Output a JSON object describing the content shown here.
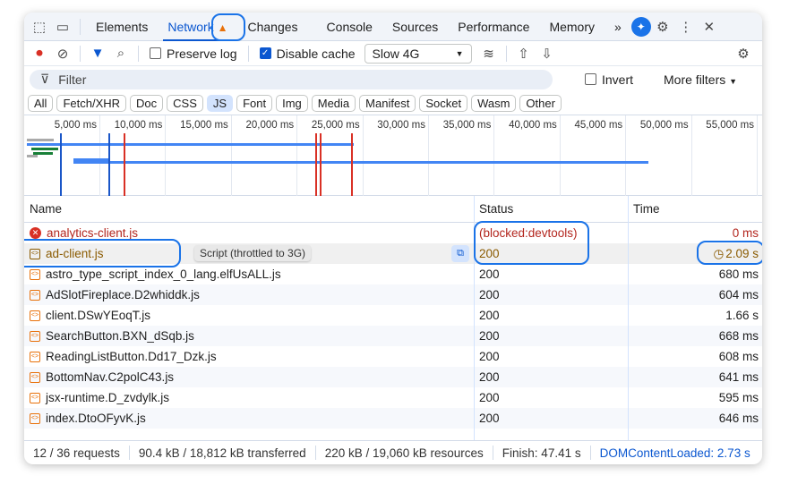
{
  "tabs": {
    "items": [
      "Elements",
      "Network",
      "Changes",
      "Console",
      "Sources",
      "Performance",
      "Memory"
    ],
    "active": "Network",
    "more": "»"
  },
  "toolbar": {
    "preserve_log": "Preserve log",
    "preserve_log_checked": false,
    "disable_cache": "Disable cache",
    "disable_cache_checked": true,
    "throttle": "Slow 4G"
  },
  "filter": {
    "placeholder": "Filter",
    "invert": "Invert",
    "more_filters": "More filters"
  },
  "types": [
    "All",
    "Fetch/XHR",
    "Doc",
    "CSS",
    "JS",
    "Font",
    "Img",
    "Media",
    "Manifest",
    "Socket",
    "Wasm",
    "Other"
  ],
  "active_type": "JS",
  "overview": {
    "ticks": [
      "5,000 ms",
      "10,000 ms",
      "15,000 ms",
      "20,000 ms",
      "25,000 ms",
      "30,000 ms",
      "35,000 ms",
      "40,000 ms",
      "45,000 ms",
      "50,000 ms",
      "55,000 ms"
    ]
  },
  "table": {
    "headers": {
      "name": "Name",
      "status": "Status",
      "time": "Time"
    },
    "rows": [
      {
        "name": "analytics-client.js",
        "status": "(blocked:devtools)",
        "time": "0 ms",
        "kind": "error"
      },
      {
        "name": "ad-client.js",
        "status": "200",
        "time": "2.09 s",
        "kind": "throttled"
      },
      {
        "name": "astro_type_script_index_0_lang.elfUsALL.js",
        "status": "200",
        "time": "680 ms",
        "kind": "normal"
      },
      {
        "name": "AdSlotFireplace.D2whiddk.js",
        "status": "200",
        "time": "604 ms",
        "kind": "normal"
      },
      {
        "name": "client.DSwYEoqT.js",
        "status": "200",
        "time": "1.66 s",
        "kind": "normal"
      },
      {
        "name": "SearchButton.BXN_dSqb.js",
        "status": "200",
        "time": "668 ms",
        "kind": "normal"
      },
      {
        "name": "ReadingListButton.Dd17_Dzk.js",
        "status": "200",
        "time": "608 ms",
        "kind": "normal"
      },
      {
        "name": "BottomNav.C2polC43.js",
        "status": "200",
        "time": "641 ms",
        "kind": "normal"
      },
      {
        "name": "jsx-runtime.D_zvdylk.js",
        "status": "200",
        "time": "595 ms",
        "kind": "normal"
      },
      {
        "name": "index.DtoOFyvK.js",
        "status": "200",
        "time": "646 ms",
        "kind": "normal"
      }
    ]
  },
  "tooltip": "Script (throttled to 3G)",
  "footer": {
    "requests": "12 / 36 requests",
    "transferred": "90.4 kB / 18,812 kB transferred",
    "resources": "220 kB / 19,060 kB resources",
    "finish": "Finish: 47.41 s",
    "dcl": "DOMContentLoaded: 2.73 s"
  },
  "colors": {
    "accent": "#0b57d0",
    "error": "#b3261e",
    "throttled": "#8a5a00",
    "warning": "#e8710a",
    "highlight": "#1a73e8"
  }
}
